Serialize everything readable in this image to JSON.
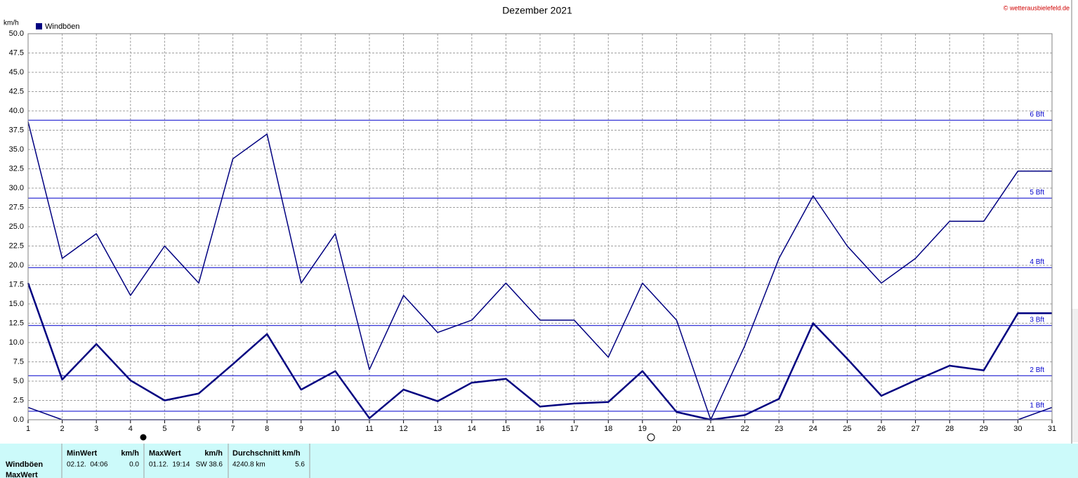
{
  "chart_data": {
    "type": "line",
    "title": "Dezember 2021",
    "source": "© wetterausbielefeld.de",
    "y_label": "km/h",
    "x": [
      1,
      2,
      3,
      4,
      5,
      6,
      7,
      8,
      9,
      10,
      11,
      12,
      13,
      14,
      15,
      16,
      17,
      18,
      19,
      20,
      21,
      22,
      23,
      24,
      25,
      26,
      27,
      28,
      29,
      30,
      31
    ],
    "xlim": [
      1,
      31
    ],
    "xticks": [
      1,
      2,
      3,
      4,
      5,
      6,
      7,
      8,
      9,
      10,
      11,
      12,
      13,
      14,
      15,
      16,
      17,
      18,
      19,
      20,
      21,
      22,
      23,
      24,
      25,
      26,
      27,
      28,
      29,
      30,
      31
    ],
    "ylim": [
      0,
      50
    ],
    "yticks": [
      {
        "value": 0,
        "label": "0.0"
      },
      2.5,
      {
        "value": 5,
        "label": "5.0"
      },
      7.5,
      {
        "value": 10,
        "label": "10.0"
      },
      12.5,
      {
        "value": 15,
        "label": "15.0"
      },
      17.5,
      {
        "value": 20,
        "label": "20.0"
      },
      22.5,
      {
        "value": 25,
        "label": "25.0"
      },
      27.5,
      {
        "value": 30,
        "label": "30.0"
      },
      32.5,
      {
        "value": 35,
        "label": "35.0"
      },
      37.5,
      {
        "value": 40,
        "label": "40.0"
      },
      42.5,
      {
        "value": 45,
        "label": "45.0"
      },
      47.5,
      {
        "value": 50,
        "label": "50.0"
      }
    ],
    "grid": true,
    "series": [
      {
        "name": "Windböen",
        "color": "#000080",
        "width": 1.5,
        "values": [
          38.6,
          20.9,
          24.1,
          16.1,
          22.5,
          17.7,
          33.8,
          37.0,
          17.7,
          24.1,
          6.5,
          16.1,
          11.3,
          12.9,
          17.7,
          12.9,
          12.9,
          8.1,
          17.7,
          12.9,
          0,
          9.6,
          20.9,
          29.0,
          22.5,
          17.7,
          20.9,
          25.7,
          25.7,
          32.2,
          32.2
        ]
      },
      {
        "color": "#000080",
        "width": 2.5,
        "values": [
          17.7,
          5.2,
          9.8,
          5.1,
          2.5,
          3.4,
          7.2,
          11.1,
          3.9,
          6.3,
          0.2,
          3.9,
          2.4,
          4.8,
          5.3,
          1.7,
          2.1,
          2.3,
          6.3,
          1.0,
          0,
          0.6,
          2.7,
          12.5,
          7.9,
          3.1,
          5.1,
          7.0,
          6.4,
          13.8,
          13.8
        ]
      },
      {
        "color": "#000080",
        "width": 1.5,
        "values": [
          1.6,
          0,
          0,
          0,
          0,
          0,
          0,
          0,
          0,
          0,
          0,
          0,
          0,
          0,
          0,
          0,
          0,
          0,
          0,
          0,
          0,
          0,
          0,
          0,
          0,
          0,
          0,
          0,
          0,
          0,
          1.6
        ]
      }
    ],
    "beaufort_color": "#0000cc",
    "beaufort_lines": [
      {
        "label": "1 Bft",
        "value": 1.1
      },
      {
        "label": "2 Bft",
        "value": 5.7
      },
      {
        "label": "3 Bft",
        "value": 12.2
      },
      {
        "label": "4 Bft",
        "value": 19.7
      },
      {
        "label": "5 Bft",
        "value": 28.7
      },
      {
        "label": "6 Bft",
        "value": 38.8
      }
    ]
  },
  "stats": {
    "headers": [
      "MinWert",
      "km/h",
      "MaxWert",
      "km/h",
      "Durchschnitt km/h"
    ],
    "rows": [
      [
        "Windböen",
        "02.12.  04:06",
        "0.0",
        "01.12.  19:14",
        "SW 38.6",
        "4240.8 km",
        "5.6"
      ],
      [
        "MaxWert"
      ]
    ]
  }
}
